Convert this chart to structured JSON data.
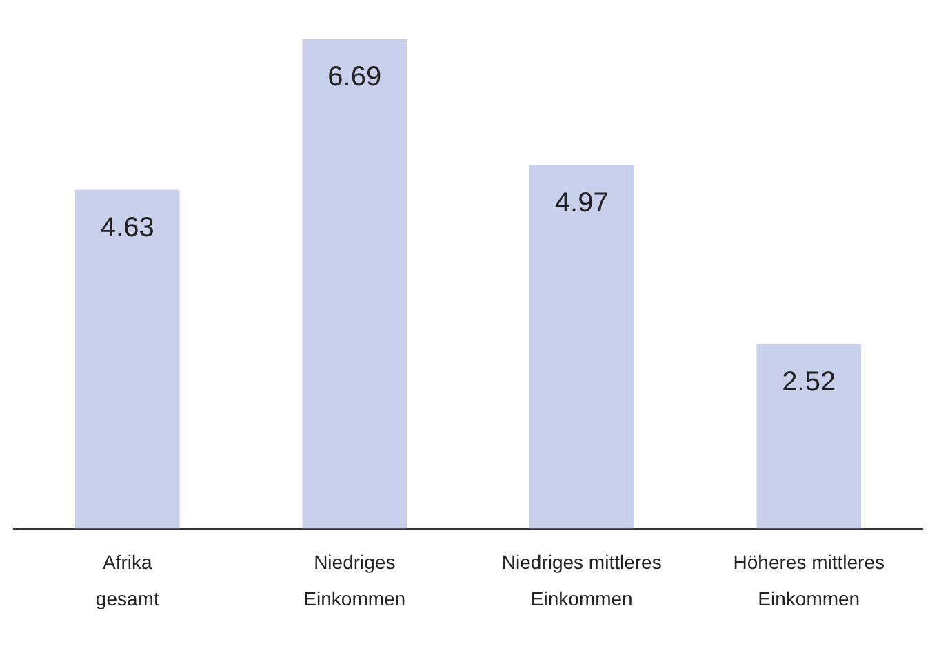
{
  "chart_data": {
    "type": "bar",
    "categories": [
      "Afrika gesamt",
      "Niedriges Einkommen",
      "Niedriges mittleres Einkommen",
      "Höheres mittleres Einkommen"
    ],
    "values": [
      4.63,
      6.69,
      4.97,
      2.52
    ],
    "color": "#c8d0ec",
    "data_labels": true,
    "grid": false,
    "legend": false
  }
}
